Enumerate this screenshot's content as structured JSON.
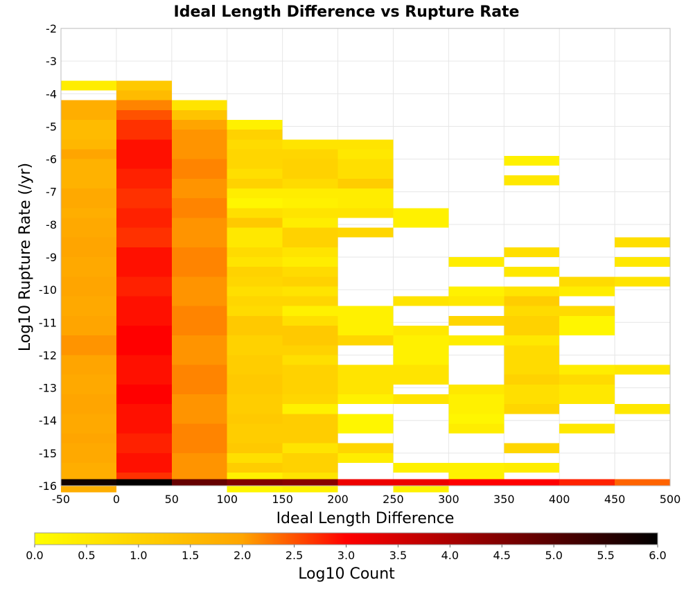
{
  "chart_data": {
    "type": "heatmap",
    "title": "Ideal Length Difference vs Rupture Rate",
    "xlabel": "Ideal Length Difference",
    "ylabel": "Log10 Rupture Rate (/yr)",
    "xlim": [
      -50,
      500
    ],
    "ylim": [
      -16,
      -2
    ],
    "x_ticks": [
      "-50",
      "0",
      "50",
      "100",
      "150",
      "200",
      "250",
      "300",
      "350",
      "400",
      "450",
      "500"
    ],
    "y_ticks": [
      "-2",
      "-3",
      "-4",
      "-5",
      "-6",
      "-7",
      "-8",
      "-9",
      "-10",
      "-11",
      "-12",
      "-13",
      "-14",
      "-15",
      "-16"
    ],
    "x_bin_width": 50,
    "y_bin_height": 0.3,
    "grid": true,
    "colorbar": {
      "label": "Log10 Count",
      "range": [
        0,
        6
      ],
      "ticks": [
        "0.0",
        "0.5",
        "1.0",
        "1.5",
        "2.0",
        "2.5",
        "3.0",
        "3.5",
        "4.0",
        "4.5",
        "5.0",
        "5.5",
        "6.0"
      ],
      "placement": "bottom",
      "colors": [
        "#ffff00",
        "#ffa500",
        "#ff0000",
        "#000000"
      ]
    },
    "columns": [
      {
        "x": -50,
        "cells": [
          [
            -3.6,
            0.3,
            0.4
          ],
          [
            -4.2,
            0.6,
            1.8
          ],
          [
            -4.8,
            0.6,
            1.5
          ],
          [
            -5.4,
            0.3,
            1.6
          ],
          [
            -5.7,
            0.3,
            2.0
          ],
          [
            -6.0,
            0.9,
            1.7
          ],
          [
            -6.9,
            0.6,
            1.9
          ],
          [
            -7.5,
            0.3,
            1.8
          ],
          [
            -7.8,
            0.6,
            1.9
          ],
          [
            -8.4,
            0.6,
            2.0
          ],
          [
            -9.0,
            0.6,
            1.9
          ],
          [
            -9.6,
            0.6,
            2.0
          ],
          [
            -10.2,
            0.6,
            1.9
          ],
          [
            -10.8,
            0.6,
            2.0
          ],
          [
            -11.4,
            0.6,
            2.1
          ],
          [
            -12.0,
            0.6,
            2.0
          ],
          [
            -12.6,
            0.6,
            1.9
          ],
          [
            -13.2,
            0.6,
            2.0
          ],
          [
            -13.8,
            0.6,
            1.9
          ],
          [
            -14.4,
            0.3,
            2.0
          ],
          [
            -14.7,
            0.6,
            1.9
          ],
          [
            -15.3,
            0.6,
            1.8
          ],
          [
            -15.9,
            0.3,
            1.8
          ]
        ]
      },
      {
        "x": 0,
        "cells": [
          [
            -3.6,
            0.3,
            1.2
          ],
          [
            -3.9,
            0.3,
            1.5
          ],
          [
            -4.2,
            0.3,
            2.2
          ],
          [
            -4.5,
            0.3,
            2.5
          ],
          [
            -4.8,
            0.6,
            2.7
          ],
          [
            -5.4,
            0.9,
            2.9
          ],
          [
            -6.3,
            0.6,
            2.8
          ],
          [
            -6.9,
            0.6,
            2.7
          ],
          [
            -7.5,
            0.6,
            2.8
          ],
          [
            -8.1,
            0.6,
            2.7
          ],
          [
            -8.7,
            0.9,
            2.9
          ],
          [
            -9.6,
            0.6,
            2.8
          ],
          [
            -10.2,
            0.9,
            2.9
          ],
          [
            -11.1,
            0.9,
            3.0
          ],
          [
            -12.0,
            0.9,
            2.9
          ],
          [
            -12.9,
            0.6,
            3.0
          ],
          [
            -13.5,
            0.9,
            2.9
          ],
          [
            -14.4,
            0.6,
            2.8
          ],
          [
            -15.0,
            0.6,
            2.9
          ],
          [
            -15.6,
            0.3,
            2.7
          ]
        ]
      },
      {
        "x": 50,
        "cells": [
          [
            -4.2,
            0.3,
            0.6
          ],
          [
            -4.5,
            0.3,
            1.3
          ],
          [
            -4.8,
            0.3,
            2.0
          ],
          [
            -5.1,
            0.9,
            2.1
          ],
          [
            -6.0,
            0.6,
            2.2
          ],
          [
            -6.6,
            0.6,
            2.1
          ],
          [
            -7.2,
            0.6,
            2.2
          ],
          [
            -7.8,
            0.9,
            2.1
          ],
          [
            -8.7,
            0.9,
            2.2
          ],
          [
            -9.6,
            0.9,
            2.1
          ],
          [
            -10.5,
            0.9,
            2.2
          ],
          [
            -11.4,
            0.9,
            2.1
          ],
          [
            -12.3,
            0.9,
            2.2
          ],
          [
            -13.2,
            0.9,
            2.1
          ],
          [
            -14.1,
            0.9,
            2.2
          ],
          [
            -15.0,
            0.9,
            2.1
          ]
        ]
      },
      {
        "x": 100,
        "cells": [
          [
            -4.8,
            0.3,
            0.3
          ],
          [
            -5.1,
            0.3,
            1.0
          ],
          [
            -5.4,
            0.3,
            0.8
          ],
          [
            -5.7,
            0.6,
            0.9
          ],
          [
            -6.3,
            0.3,
            0.7
          ],
          [
            -6.6,
            0.3,
            1.0
          ],
          [
            -6.9,
            0.3,
            0.4
          ],
          [
            -7.2,
            0.3,
            0.2
          ],
          [
            -7.5,
            0.3,
            0.7
          ],
          [
            -7.8,
            0.3,
            1.2
          ],
          [
            -8.1,
            0.6,
            0.5
          ],
          [
            -8.7,
            0.3,
            0.8
          ],
          [
            -9.0,
            0.3,
            0.6
          ],
          [
            -9.3,
            0.3,
            1.0
          ],
          [
            -9.6,
            0.3,
            0.9
          ],
          [
            -9.9,
            0.3,
            0.7
          ],
          [
            -10.2,
            0.3,
            0.9
          ],
          [
            -10.5,
            0.3,
            0.8
          ],
          [
            -10.8,
            0.6,
            1.2
          ],
          [
            -11.4,
            0.6,
            1.0
          ],
          [
            -12.0,
            0.6,
            1.1
          ],
          [
            -12.6,
            0.6,
            1.2
          ],
          [
            -13.2,
            0.6,
            1.1
          ],
          [
            -13.8,
            0.3,
            1.2
          ],
          [
            -14.1,
            0.6,
            1.1
          ],
          [
            -14.7,
            0.3,
            1.2
          ],
          [
            -15.0,
            0.3,
            0.7
          ],
          [
            -15.3,
            0.3,
            1.1
          ],
          [
            -15.6,
            0.3,
            0.3
          ],
          [
            -15.9,
            0.3,
            0.2
          ]
        ]
      },
      {
        "x": 150,
        "cells": [
          [
            -5.4,
            0.3,
            0.6
          ],
          [
            -5.7,
            0.3,
            0.9
          ],
          [
            -6.0,
            0.6,
            1.0
          ],
          [
            -6.6,
            0.3,
            0.8
          ],
          [
            -6.9,
            0.3,
            0.4
          ],
          [
            -7.2,
            0.3,
            0.3
          ],
          [
            -7.5,
            0.3,
            0.6
          ],
          [
            -7.8,
            0.3,
            0.4
          ],
          [
            -8.1,
            0.6,
            1.0
          ],
          [
            -8.7,
            0.3,
            0.6
          ],
          [
            -9.0,
            0.3,
            0.4
          ],
          [
            -9.3,
            0.3,
            0.8
          ],
          [
            -9.6,
            0.3,
            1.0
          ],
          [
            -9.9,
            0.3,
            0.6
          ],
          [
            -10.2,
            0.3,
            0.9
          ],
          [
            -10.5,
            0.3,
            0.3
          ],
          [
            -10.8,
            0.3,
            0.7
          ],
          [
            -11.1,
            0.6,
            1.2
          ],
          [
            -11.7,
            0.3,
            1.0
          ],
          [
            -12.0,
            0.3,
            0.7
          ],
          [
            -12.3,
            0.9,
            1.0
          ],
          [
            -13.2,
            0.3,
            0.9
          ],
          [
            -13.5,
            0.3,
            0.3
          ],
          [
            -13.8,
            0.6,
            1.1
          ],
          [
            -14.4,
            0.3,
            1.1
          ],
          [
            -14.7,
            0.3,
            0.6
          ],
          [
            -15.0,
            0.3,
            1.0
          ],
          [
            -15.3,
            0.3,
            1.0
          ],
          [
            -15.6,
            0.3,
            0.6
          ],
          [
            -15.9,
            0.3,
            0.3
          ]
        ]
      },
      {
        "x": 200,
        "cells": [
          [
            -5.4,
            0.3,
            0.6
          ],
          [
            -5.7,
            0.3,
            0.5
          ],
          [
            -6.0,
            0.6,
            0.7
          ],
          [
            -6.6,
            0.3,
            1.1
          ],
          [
            -6.9,
            0.6,
            0.4
          ],
          [
            -7.5,
            0.3,
            0.6
          ],
          [
            -8.1,
            0.3,
            0.9
          ],
          [
            -10.5,
            0.3,
            0.3
          ],
          [
            -10.8,
            0.6,
            0.3
          ],
          [
            -11.4,
            0.3,
            0.9
          ],
          [
            -12.3,
            0.9,
            0.6
          ],
          [
            -13.2,
            0.3,
            0.3
          ],
          [
            -13.8,
            0.6,
            0.2
          ],
          [
            -14.7,
            0.3,
            0.9
          ],
          [
            -15.0,
            0.3,
            0.4
          ]
        ]
      },
      {
        "x": 250,
        "cells": [
          [
            -7.5,
            0.6,
            0.3
          ],
          [
            -10.2,
            0.3,
            0.6
          ],
          [
            -11.1,
            0.3,
            0.5
          ],
          [
            -11.4,
            0.9,
            0.3
          ],
          [
            -12.3,
            0.6,
            0.6
          ],
          [
            -13.2,
            0.3,
            0.6
          ],
          [
            -15.3,
            0.3,
            0.3
          ],
          [
            -15.9,
            0.3,
            0.3
          ]
        ]
      },
      {
        "x": 300,
        "cells": [
          [
            -9.0,
            0.3,
            0.4
          ],
          [
            -9.9,
            0.3,
            0.3
          ],
          [
            -10.2,
            0.3,
            0.5
          ],
          [
            -10.8,
            0.3,
            0.9
          ],
          [
            -11.4,
            0.3,
            0.4
          ],
          [
            -12.9,
            0.3,
            0.5
          ],
          [
            -13.2,
            0.6,
            0.3
          ],
          [
            -13.8,
            0.3,
            0.2
          ],
          [
            -14.1,
            0.3,
            0.4
          ],
          [
            -15.3,
            0.6,
            0.3
          ]
        ]
      },
      {
        "x": 350,
        "cells": [
          [
            -5.9,
            0.3,
            0.3
          ],
          [
            -6.5,
            0.3,
            0.5
          ],
          [
            -8.7,
            0.3,
            0.7
          ],
          [
            -9.3,
            0.3,
            0.5
          ],
          [
            -9.9,
            0.3,
            0.6
          ],
          [
            -10.2,
            0.3,
            1.1
          ],
          [
            -10.5,
            0.3,
            0.8
          ],
          [
            -10.8,
            0.6,
            1.0
          ],
          [
            -11.4,
            0.3,
            0.5
          ],
          [
            -11.7,
            0.9,
            0.8
          ],
          [
            -12.6,
            0.3,
            1.0
          ],
          [
            -12.9,
            0.6,
            0.7
          ],
          [
            -13.5,
            0.3,
            0.9
          ],
          [
            -14.7,
            0.3,
            0.9
          ],
          [
            -15.3,
            0.3,
            0.4
          ]
        ]
      },
      {
        "x": 400,
        "cells": [
          [
            -9.6,
            0.3,
            0.8
          ],
          [
            -9.9,
            0.3,
            0.4
          ],
          [
            -10.5,
            0.3,
            0.8
          ],
          [
            -10.8,
            0.6,
            0.2
          ],
          [
            -12.3,
            0.3,
            0.4
          ],
          [
            -12.6,
            0.3,
            0.8
          ],
          [
            -12.9,
            0.6,
            0.5
          ],
          [
            -14.1,
            0.3,
            0.5
          ]
        ]
      },
      {
        "x": 450,
        "cells": [
          [
            -8.4,
            0.3,
            0.7
          ],
          [
            -9.0,
            0.3,
            0.5
          ],
          [
            -9.6,
            0.3,
            0.6
          ],
          [
            -12.3,
            0.3,
            0.5
          ],
          [
            -13.5,
            0.3,
            0.5
          ]
        ]
      }
    ],
    "bottom_row": {
      "y": -16,
      "height": 0.2,
      "values": [
        5.8,
        6.0,
        4.8,
        4.5,
        4.4,
        3.2,
        3.2,
        3.0,
        3.0,
        2.8,
        2.4
      ]
    }
  }
}
